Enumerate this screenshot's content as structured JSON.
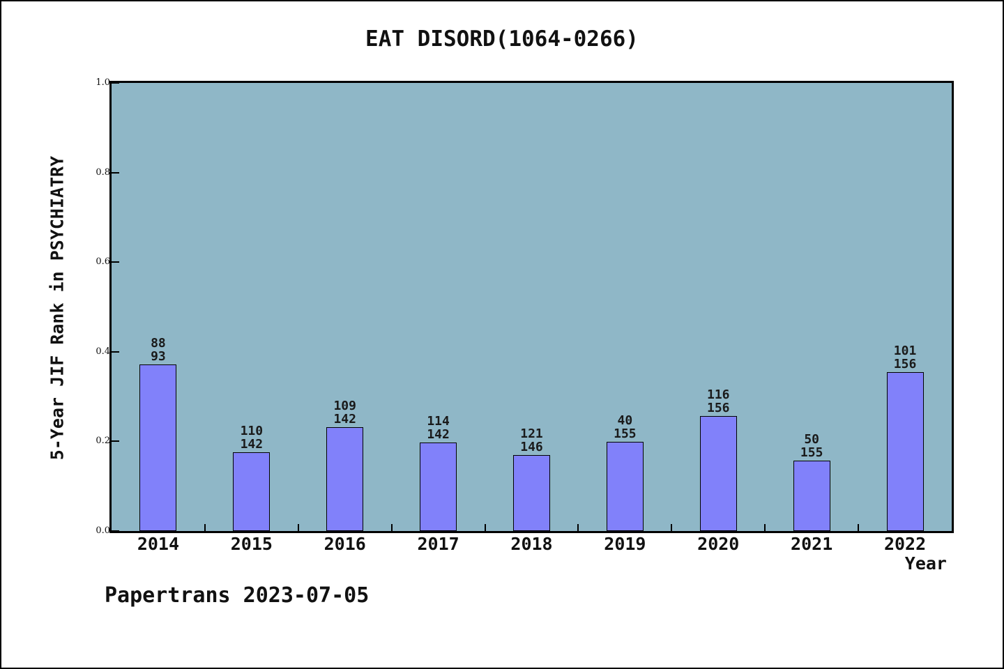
{
  "page": {
    "background": "#ffffff",
    "border_color": "#000000"
  },
  "header": {
    "title": "EAT DISORD(1064-0266)"
  },
  "footer": {
    "watermark": "Papertrans 2023-07-05"
  },
  "chart_data": {
    "type": "bar",
    "title": "EAT DISORD(1064-0266)",
    "xlabel": "Year",
    "ylabel": "5-Year JIF Rank in PSYCHIATRY",
    "ylim": [
      0.0,
      1.0
    ],
    "y_ticks": [
      "0.0",
      "0.2",
      "0.4",
      "0.6",
      "0.8",
      "1.0"
    ],
    "grid": false,
    "legend": false,
    "plot_background": "#8FB7C7",
    "bar_color": "#8181FA",
    "bar_edge_color": "#000000",
    "categories": [
      "2014",
      "2015",
      "2016",
      "2017",
      "2018",
      "2019",
      "2020",
      "2021",
      "2022"
    ],
    "series": [
      {
        "name": "5-Year JIF Rank in PSYCHIATRY",
        "values": [
          0.371,
          0.176,
          0.231,
          0.198,
          0.17,
          0.199,
          0.256,
          0.157,
          0.354
        ]
      }
    ],
    "bars": [
      {
        "year": "2014",
        "rank": "88",
        "out_of": "93",
        "height_fraction": 0.371
      },
      {
        "year": "2015",
        "rank": "110",
        "out_of": "142",
        "height_fraction": 0.176
      },
      {
        "year": "2016",
        "rank": "109",
        "out_of": "142",
        "height_fraction": 0.231
      },
      {
        "year": "2017",
        "rank": "114",
        "out_of": "142",
        "height_fraction": 0.198
      },
      {
        "year": "2018",
        "rank": "121",
        "out_of": "146",
        "height_fraction": 0.17
      },
      {
        "year": "2019",
        "rank": "40",
        "out_of": "155",
        "height_fraction": 0.199
      },
      {
        "year": "2020",
        "rank": "116",
        "out_of": "156",
        "height_fraction": 0.256
      },
      {
        "year": "2021",
        "rank": "50",
        "out_of": "155",
        "height_fraction": 0.157
      },
      {
        "year": "2022",
        "rank": "101",
        "out_of": "156",
        "height_fraction": 0.354
      }
    ]
  }
}
